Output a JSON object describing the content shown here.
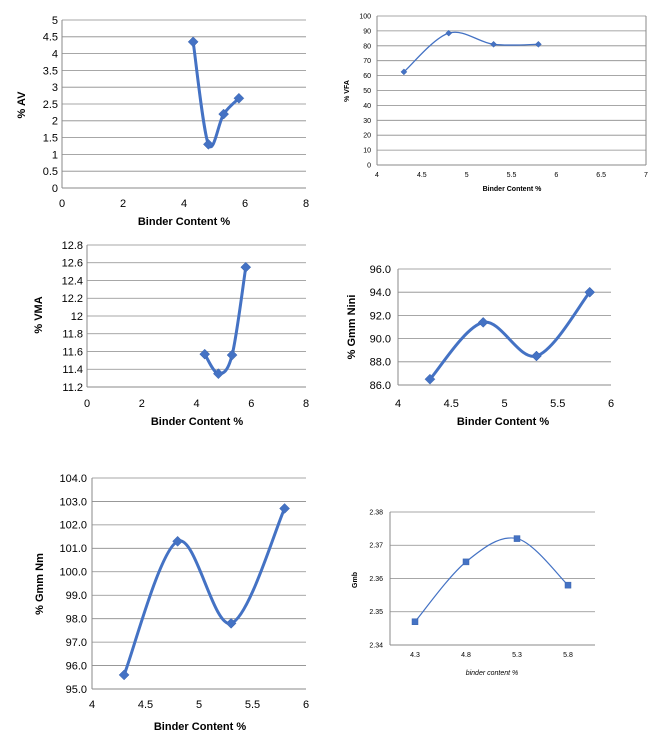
{
  "chart_data": [
    {
      "type": "line",
      "smooth": true,
      "marker": "diamond",
      "xlabel": "Binder Content %",
      "ylabel": "% AV",
      "xlim": [
        0,
        8
      ],
      "xstep": 2,
      "ylim": [
        0,
        5
      ],
      "ystep": 0.5,
      "xticks": [
        "0",
        "2",
        "4",
        "6",
        "8"
      ],
      "yticks": [
        "0",
        "0.5",
        "1",
        "1.5",
        "2",
        "2.5",
        "3",
        "3.5",
        "4",
        "4.5",
        "5"
      ],
      "x": [
        4.3,
        4.8,
        5.3,
        5.8
      ],
      "y": [
        4.35,
        1.3,
        2.2,
        2.67
      ],
      "grid": true
    },
    {
      "type": "line",
      "smooth": true,
      "marker": "diamond",
      "xlabel": "Binder Content %",
      "ylabel": "% VFA",
      "xlim": [
        4,
        7
      ],
      "xstep": 0.5,
      "ylim": [
        0,
        100
      ],
      "ystep": 10,
      "xticks": [
        "4",
        "4.5",
        "5",
        "5.5",
        "6",
        "6.5",
        "7"
      ],
      "yticks": [
        "0",
        "10",
        "20",
        "30",
        "40",
        "50",
        "60",
        "70",
        "80",
        "90",
        "100"
      ],
      "x": [
        4.3,
        4.8,
        5.3,
        5.8
      ],
      "y": [
        62.5,
        88.5,
        81.0,
        81.0
      ],
      "grid": true
    },
    {
      "type": "line",
      "smooth": true,
      "marker": "diamond",
      "xlabel": "Binder Content %",
      "ylabel": "% VMA",
      "xlim": [
        0,
        8
      ],
      "xstep": 2,
      "ylim": [
        11.2,
        12.8
      ],
      "ystep": 0.2,
      "xticks": [
        "0",
        "2",
        "4",
        "6",
        "8"
      ],
      "yticks": [
        "11.2",
        "11.4",
        "11.6",
        "11.8",
        "12",
        "12.2",
        "12.4",
        "12.6",
        "12.8"
      ],
      "x": [
        4.3,
        4.8,
        5.3,
        5.8
      ],
      "y": [
        11.57,
        11.35,
        11.56,
        12.55
      ],
      "grid": true
    },
    {
      "type": "line",
      "smooth": true,
      "marker": "diamond",
      "xlabel": "Binder Content %",
      "ylabel": "% Gmm Nini",
      "xlim": [
        4,
        6
      ],
      "xstep": 0.5,
      "ylim": [
        86,
        96
      ],
      "ystep": 2,
      "xticks": [
        "4",
        "4.5",
        "5",
        "5.5",
        "6"
      ],
      "yticks": [
        "86.0",
        "88.0",
        "90.0",
        "92.0",
        "94.0",
        "96.0"
      ],
      "x": [
        4.3,
        4.8,
        5.3,
        5.8
      ],
      "y": [
        86.5,
        91.4,
        88.5,
        94.0
      ],
      "grid": true
    },
    {
      "type": "line",
      "smooth": true,
      "marker": "diamond",
      "xlabel": "Binder Content %",
      "ylabel": "% Gmm Nm",
      "xlim": [
        4,
        6
      ],
      "xstep": 0.5,
      "ylim": [
        95,
        104
      ],
      "ystep": 1,
      "xticks": [
        "4",
        "4.5",
        "5",
        "5.5",
        "6"
      ],
      "yticks": [
        "95.0",
        "96.0",
        "97.0",
        "98.0",
        "99.0",
        "100.0",
        "101.0",
        "102.0",
        "103.0",
        "104.0"
      ],
      "x": [
        4.3,
        4.8,
        5.3,
        5.8
      ],
      "y": [
        95.6,
        101.3,
        97.8,
        102.7
      ],
      "grid": true
    },
    {
      "type": "line",
      "smooth": true,
      "marker": "square",
      "categorical": true,
      "xlabel": "binder content %",
      "ylabel": "Gmb",
      "ylim": [
        2.34,
        2.38
      ],
      "ystep": 0.01,
      "xticks": [
        "4.3",
        "4.8",
        "5.3",
        "5.8"
      ],
      "yticks": [
        "2.34",
        "2.35",
        "2.36",
        "2.37",
        "2.38"
      ],
      "x": [
        4.3,
        4.8,
        5.3,
        5.8
      ],
      "y": [
        2.347,
        2.365,
        2.372,
        2.358
      ],
      "grid": true
    }
  ],
  "colors": {
    "series": "#4472c4",
    "grid": "#8a8a8a"
  }
}
